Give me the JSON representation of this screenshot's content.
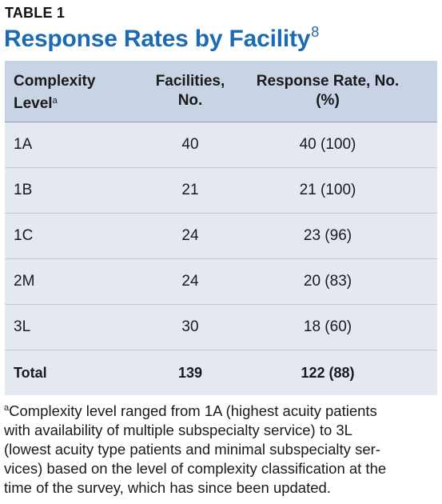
{
  "label": "TABLE 1",
  "title": "Response Rates by Facility",
  "title_ref": "8",
  "headers": {
    "col1": "Complexity",
    "col1b": "Level",
    "col1_fn": "a",
    "col2a": "Facilities,",
    "col2b": "No.",
    "col3a": "Response Rate, No.",
    "col3b": "(%)"
  },
  "rows": [
    {
      "level": "1A",
      "facilities": "40",
      "response": "40 (100)"
    },
    {
      "level": "1B",
      "facilities": "21",
      "response": "21 (100)"
    },
    {
      "level": "1C",
      "facilities": "24",
      "response": "23 (96)"
    },
    {
      "level": "2M",
      "facilities": "24",
      "response": "20 (83)"
    },
    {
      "level": "3L",
      "facilities": "30",
      "response": "18 (60)"
    }
  ],
  "total": {
    "level": "Total",
    "facilities": "139",
    "response": "122 (88)"
  },
  "footnote_marker": "a",
  "footnote_lines": [
    "Complexity level ranged from 1A (highest acuity patients",
    "with availability of multiple subspecialty service) to 3L",
    "(lowest acuity type patients and minimal subspecialty ser-",
    "vices) based on the level of complexity classification at the",
    "time of the survey, which has since been updated."
  ],
  "colors": {
    "title": "#1c6ab3",
    "header_bg": "#c8d3e6",
    "body_bg": "#e3e8f1"
  }
}
